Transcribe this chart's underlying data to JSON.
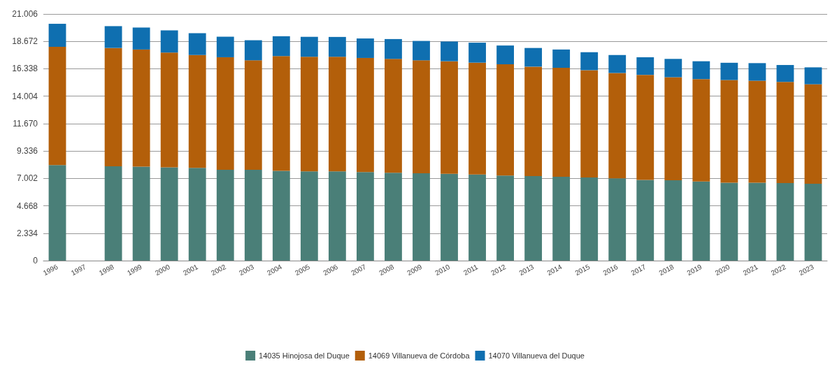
{
  "chart_data": {
    "type": "bar",
    "stacked": true,
    "categories": [
      "1996",
      "1997",
      "1998",
      "1999",
      "2000",
      "2001",
      "2002",
      "2003",
      "2004",
      "2005",
      "2006",
      "2007",
      "2008",
      "2009",
      "2010",
      "2011",
      "2012",
      "2013",
      "2014",
      "2015",
      "2016",
      "2017",
      "2018",
      "2019",
      "2020",
      "2021",
      "2022",
      "2023"
    ],
    "series": [
      {
        "name": "14035 Hinojosa del Duque",
        "color": "#4a7f78",
        "values": [
          8140,
          null,
          8040,
          8000,
          7940,
          7900,
          7740,
          7740,
          7640,
          7600,
          7600,
          7540,
          7480,
          7440,
          7400,
          7340,
          7240,
          7200,
          7140,
          7080,
          7000,
          6880,
          6840,
          6740,
          6640,
          6640,
          6600,
          6540
        ]
      },
      {
        "name": "14069 Villanueva de Córdoba",
        "color": "#b35f0a",
        "values": [
          10070,
          null,
          10070,
          9980,
          9780,
          9610,
          9580,
          9320,
          9780,
          9760,
          9760,
          9720,
          9700,
          9620,
          9580,
          9520,
          9480,
          9320,
          9280,
          9140,
          8980,
          8940,
          8780,
          8720,
          8740,
          8680,
          8620,
          8480
        ]
      },
      {
        "name": "14070 Villanueva del Duque",
        "color": "#0f6fb0",
        "values": [
          1960,
          null,
          1860,
          1870,
          1890,
          1860,
          1750,
          1710,
          1690,
          1700,
          1690,
          1660,
          1690,
          1650,
          1680,
          1700,
          1600,
          1590,
          1560,
          1530,
          1530,
          1500,
          1560,
          1520,
          1470,
          1500,
          1440,
          1440
        ]
      }
    ],
    "ylim": [
      0,
      21006
    ],
    "yticks": [
      0,
      {
        "value": 2334,
        "label": "2.334"
      },
      {
        "value": 4668,
        "label": "4.668"
      },
      {
        "value": 7002,
        "label": "7.002"
      },
      {
        "value": 9336,
        "label": "9.336"
      },
      {
        "value": 11670,
        "label": "11.670"
      },
      {
        "value": 14004,
        "label": "14.004"
      },
      {
        "value": 16338,
        "label": "16.338"
      },
      {
        "value": 18672,
        "label": "18.672"
      },
      {
        "value": 21006,
        "label": "21.006"
      }
    ],
    "grid": "y",
    "legend": "bottom"
  }
}
